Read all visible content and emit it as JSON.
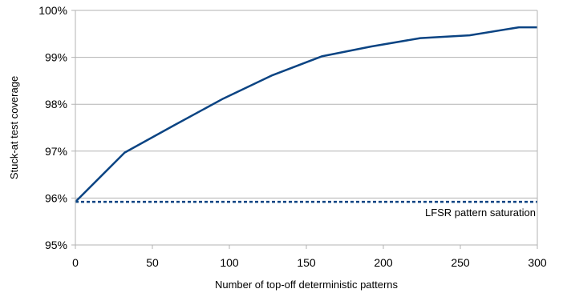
{
  "chart_data": {
    "type": "line",
    "title": "",
    "xlabel": "Number of top-off deterministic patterns",
    "ylabel": "Stuck-at test coverage",
    "xlim": [
      0,
      300
    ],
    "ylim": [
      95,
      100
    ],
    "x_ticks": [
      "0",
      "50",
      "100",
      "150",
      "200",
      "250",
      "300"
    ],
    "y_ticks": [
      "95%",
      "96%",
      "97%",
      "98%",
      "99%",
      "100%"
    ],
    "grid": "horizontal",
    "series": [
      {
        "style": "solid",
        "color": "#0b4483",
        "x": [
          0,
          32,
          64,
          96,
          128,
          160,
          192,
          224,
          256,
          288,
          300
        ],
        "y": [
          95.92,
          96.97,
          97.55,
          98.12,
          98.62,
          99.02,
          99.23,
          99.41,
          99.47,
          99.64,
          99.64
        ]
      }
    ],
    "reference_lines": [
      {
        "style": "dashed",
        "color": "#0b4483",
        "y": 95.92,
        "label": "LFSR pattern saturation"
      }
    ]
  }
}
